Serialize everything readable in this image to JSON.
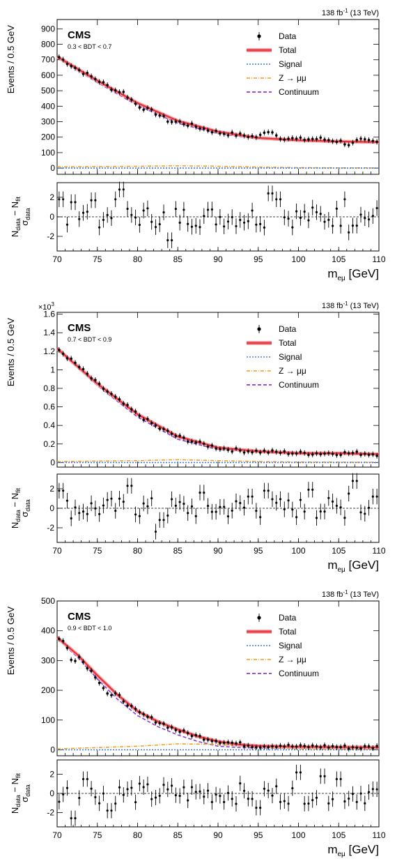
{
  "figure": {
    "panels": [
      {
        "lumi": "138 fb",
        "lumi_sup": "-1",
        "lumi_energy": " (13 TeV)",
        "experiment": "CMS",
        "category": "0.3 < BDT < 0.7",
        "y_multiplier": "",
        "ylabel": "Events / 0.5 GeV",
        "residual_ylabel_num": "N",
        "residual_ylabel_den": "σ",
        "xlabel": "m",
        "xlabel_sub": "eμ",
        "xlabel_unit": " [GeV]"
      },
      {
        "lumi": "138 fb",
        "lumi_sup": "-1",
        "lumi_energy": " (13 TeV)",
        "experiment": "CMS",
        "category": "0.7 < BDT < 0.9",
        "y_multiplier": "×10",
        "y_multiplier_sup": "3",
        "ylabel": "Events / 0.5 GeV",
        "residual_ylabel_num": "N",
        "residual_ylabel_den": "σ",
        "xlabel": "m",
        "xlabel_sub": "eμ",
        "xlabel_unit": " [GeV]"
      },
      {
        "lumi": "138 fb",
        "lumi_sup": "-1",
        "lumi_energy": " (13 TeV)",
        "experiment": "CMS",
        "category": "0.9 < BDT < 1.0",
        "y_multiplier": "",
        "ylabel": "Events / 0.5 GeV",
        "residual_ylabel_num": "N",
        "residual_ylabel_den": "σ",
        "xlabel": "m",
        "xlabel_sub": "eμ",
        "xlabel_unit": " [GeV]"
      }
    ]
  },
  "legend": {
    "entries": [
      {
        "label": "Data",
        "style": "marker"
      },
      {
        "label": "Total",
        "style": "band",
        "color": "#e8323c"
      },
      {
        "label": "Signal",
        "style": "dotted",
        "color": "#3b7be0"
      },
      {
        "label": "Z → μμ",
        "style": "dashdot",
        "color": "#f39c12"
      },
      {
        "label": "Continuum",
        "style": "dashed",
        "color": "#8e3bd8"
      }
    ],
    "placement": "top-right"
  },
  "chart_data": [
    {
      "type": "scatter",
      "title": "CMS 0.3 < BDT < 0.7",
      "xlabel": "m_eμ [GeV]",
      "ylabel": "Events / 0.5 GeV",
      "xlim": [
        70,
        110
      ],
      "ylim": [
        -40,
        960
      ],
      "xticks": [
        70,
        75,
        80,
        85,
        90,
        95,
        100,
        105,
        110
      ],
      "yticks": [
        0,
        100,
        200,
        300,
        400,
        500,
        600,
        700,
        800,
        900
      ],
      "series": [
        {
          "name": "Data",
          "x": [
            70,
            72.5,
            75,
            77.5,
            78,
            80,
            82.5,
            84,
            85,
            87.5,
            90,
            92.5,
            95,
            96.5,
            97.5,
            100,
            102.5,
            105,
            106.5,
            107.5,
            110
          ],
          "y": [
            725,
            640,
            570,
            495,
            500,
            405,
            350,
            300,
            300,
            265,
            230,
            215,
            200,
            250,
            200,
            185,
            190,
            175,
            150,
            180,
            165
          ]
        },
        {
          "name": "Total",
          "x": [
            70,
            75,
            80,
            85,
            90,
            95,
            100,
            105,
            110
          ],
          "y": [
            720,
            565,
            420,
            305,
            235,
            195,
            180,
            172,
            168
          ]
        },
        {
          "name": "Signal",
          "x": [
            70,
            110
          ],
          "y": [
            0,
            0
          ]
        },
        {
          "name": "Z → μμ",
          "x": [
            70,
            80,
            85,
            90,
            95,
            100,
            110
          ],
          "y": [
            8,
            12,
            15,
            12,
            7,
            3,
            1
          ]
        },
        {
          "name": "Continuum",
          "x": [
            70,
            75,
            80,
            85,
            90,
            95,
            100,
            105,
            110
          ],
          "y": [
            712,
            553,
            405,
            290,
            223,
            188,
            177,
            171,
            167
          ]
        }
      ],
      "residuals": {
        "ylim": [
          -3.5,
          3.5
        ],
        "yticks": [
          -2,
          0,
          2
        ],
        "x": [
          70.5,
          71.5,
          72,
          74.5,
          77.5,
          78,
          84,
          96.5,
          97.5,
          106,
          106.5,
          107
        ],
        "y": [
          1.8,
          -0.8,
          1.5,
          1.7,
          1.8,
          2.8,
          -2.4,
          2.4,
          1.8,
          1.8,
          -1.6,
          -0.9
        ]
      },
      "grid": false
    },
    {
      "type": "scatter",
      "title": "CMS 0.7 < BDT < 0.9",
      "xlabel": "m_eμ [GeV]",
      "ylabel": "Events / 0.5 GeV",
      "xlim": [
        70,
        110
      ],
      "ylim": [
        -0.05,
        1.62
      ],
      "y_multiplier": 1000,
      "xticks": [
        70,
        75,
        80,
        85,
        90,
        95,
        100,
        105,
        110
      ],
      "yticks": [
        0,
        0.2,
        0.4,
        0.6,
        0.8,
        1.0,
        1.2,
        1.4,
        1.6
      ],
      "series": [
        {
          "name": "Data",
          "x": [
            70,
            72.5,
            75,
            77.5,
            80,
            82.5,
            85,
            87.5,
            90,
            92.5,
            95,
            97.5,
            100,
            102.5,
            105,
            107.5,
            110
          ],
          "y": [
            1.23,
            1.05,
            0.85,
            0.68,
            0.52,
            0.38,
            0.28,
            0.21,
            0.16,
            0.13,
            0.12,
            0.11,
            0.1,
            0.1,
            0.1,
            0.1,
            0.09
          ]
        },
        {
          "name": "Total",
          "x": [
            70,
            75,
            80,
            85,
            90,
            95,
            100,
            105,
            110
          ],
          "y": [
            1.23,
            0.85,
            0.52,
            0.28,
            0.16,
            0.12,
            0.1,
            0.1,
            0.09
          ]
        },
        {
          "name": "Signal",
          "x": [
            70,
            110
          ],
          "y": [
            0,
            0
          ]
        },
        {
          "name": "Z → μμ",
          "x": [
            70,
            80,
            85,
            90,
            95,
            100,
            110
          ],
          "y": [
            0.01,
            0.02,
            0.03,
            0.02,
            0.01,
            0.005,
            0.002
          ]
        },
        {
          "name": "Continuum",
          "x": [
            70,
            75,
            80,
            85,
            90,
            95,
            100,
            105,
            110
          ],
          "y": [
            1.22,
            0.83,
            0.49,
            0.25,
            0.14,
            0.11,
            0.095,
            0.095,
            0.088
          ]
        }
      ],
      "residuals": {
        "ylim": [
          -3.5,
          3.5
        ],
        "yticks": [
          -2,
          0,
          2
        ],
        "x": [
          70.5,
          79,
          82.5,
          83,
          88,
          94,
          96,
          101.5,
          106.5,
          107,
          109.5
        ],
        "y": [
          1.8,
          2.3,
          -2.4,
          -1.2,
          1.6,
          1.2,
          1.8,
          1.9,
          1.5,
          2.8,
          1.2
        ]
      },
      "grid": false
    },
    {
      "type": "scatter",
      "title": "CMS 0.9 < BDT < 1.0",
      "xlabel": "m_eμ [GeV]",
      "ylabel": "Events / 0.5 GeV",
      "xlim": [
        70,
        110
      ],
      "ylim": [
        -20,
        500
      ],
      "xticks": [
        70,
        75,
        80,
        85,
        90,
        95,
        100,
        105,
        110
      ],
      "yticks": [
        0,
        100,
        200,
        300,
        400,
        500
      ],
      "series": [
        {
          "name": "Data",
          "x": [
            70,
            71,
            72,
            72.5,
            75,
            76.5,
            77.5,
            80,
            82.5,
            85,
            87.5,
            90,
            92.5,
            95,
            97.5,
            100,
            102.5,
            105,
            107.5,
            110
          ],
          "y": [
            375,
            360,
            290,
            320,
            240,
            180,
            185,
            125,
            95,
            65,
            45,
            30,
            20,
            12,
            15,
            10,
            12,
            10,
            8,
            10
          ]
        },
        {
          "name": "Total",
          "x": [
            70,
            72.5,
            75,
            77.5,
            80,
            82.5,
            85,
            87.5,
            90,
            92.5,
            95,
            100,
            105,
            110
          ],
          "y": [
            378,
            320,
            250,
            185,
            130,
            95,
            68,
            45,
            28,
            18,
            13,
            10,
            9,
            8
          ]
        },
        {
          "name": "Signal",
          "x": [
            70,
            110
          ],
          "y": [
            0,
            0
          ]
        },
        {
          "name": "Z → μμ",
          "x": [
            70,
            80,
            85,
            90,
            95,
            100,
            110
          ],
          "y": [
            3,
            12,
            20,
            18,
            8,
            3,
            1
          ]
        },
        {
          "name": "Continuum",
          "x": [
            70,
            72.5,
            75,
            77.5,
            80,
            82.5,
            85,
            87.5,
            90,
            92.5,
            95,
            100,
            105,
            110
          ],
          "y": [
            374,
            312,
            238,
            170,
            115,
            78,
            50,
            28,
            12,
            8,
            6,
            6,
            7,
            7
          ]
        }
      ],
      "residuals": {
        "ylim": [
          -3.5,
          3.5
        ],
        "yticks": [
          -2,
          0,
          2
        ],
        "x": [
          72,
          73.5,
          76.5,
          95,
          100,
          103,
          105
        ],
        "y": [
          -2.6,
          1.5,
          -1.8,
          -1.5,
          2.2,
          1.8,
          1.5
        ]
      },
      "grid": false
    }
  ]
}
